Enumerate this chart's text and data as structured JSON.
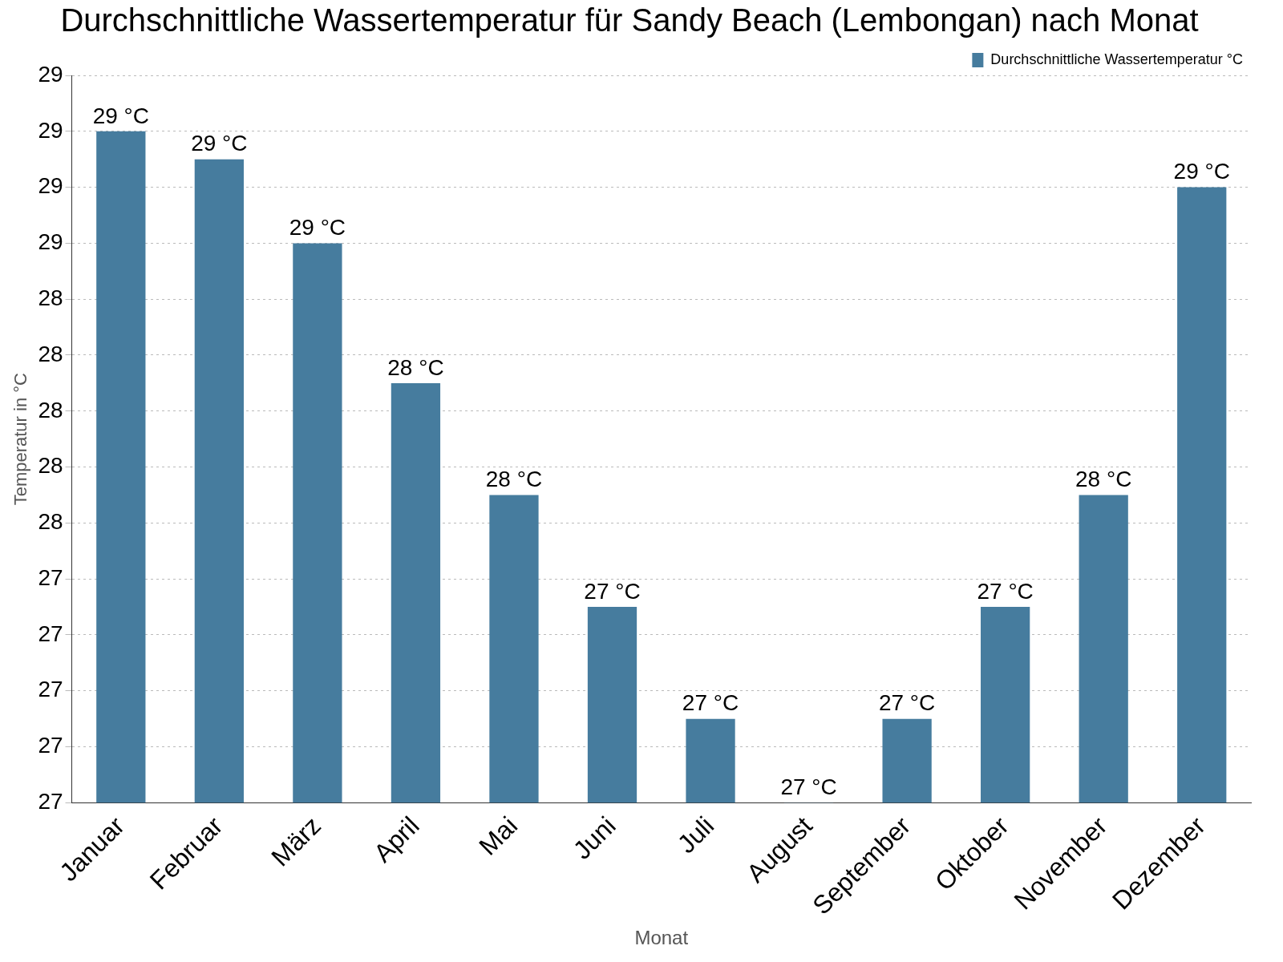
{
  "chart_data": {
    "type": "bar",
    "title": "Durchschnittliche Wassertemperatur für Sandy Beach (Lembongan) nach Monat",
    "xlabel": "Monat",
    "ylabel": "Temperatur in °C",
    "categories": [
      "Januar",
      "Februar",
      "März",
      "April",
      "Mai",
      "Juni",
      "Juli",
      "August",
      "September",
      "Oktober",
      "November",
      "Dezember"
    ],
    "series": [
      {
        "name": "Durchschnittliche Wassertemperatur °C",
        "color": "#467c9e",
        "values": [
          29.0,
          28.9,
          28.6,
          28.1,
          27.7,
          27.3,
          26.9,
          26.6,
          26.9,
          27.3,
          27.7,
          28.8
        ],
        "value_labels": [
          "29 °C",
          "29 °C",
          "29 °C",
          "28 °C",
          "28 °C",
          "27 °C",
          "27 °C",
          "27 °C",
          "27 °C",
          "27 °C",
          "28 °C",
          "29 °C"
        ]
      }
    ],
    "ylim": [
      26.6,
      29.2
    ],
    "yticks": [
      {
        "value": 26.6,
        "label": "27"
      },
      {
        "value": 26.8,
        "label": "27"
      },
      {
        "value": 27.0,
        "label": "27"
      },
      {
        "value": 27.2,
        "label": "27"
      },
      {
        "value": 27.4,
        "label": "27"
      },
      {
        "value": 27.6,
        "label": "28"
      },
      {
        "value": 27.8,
        "label": "28"
      },
      {
        "value": 28.0,
        "label": "28"
      },
      {
        "value": 28.2,
        "label": "28"
      },
      {
        "value": 28.4,
        "label": "28"
      },
      {
        "value": 28.6,
        "label": "29"
      },
      {
        "value": 28.8,
        "label": "29"
      },
      {
        "value": 29.0,
        "label": "29"
      },
      {
        "value": 29.2,
        "label": "29"
      }
    ],
    "grid": "y",
    "legend": "top right"
  }
}
